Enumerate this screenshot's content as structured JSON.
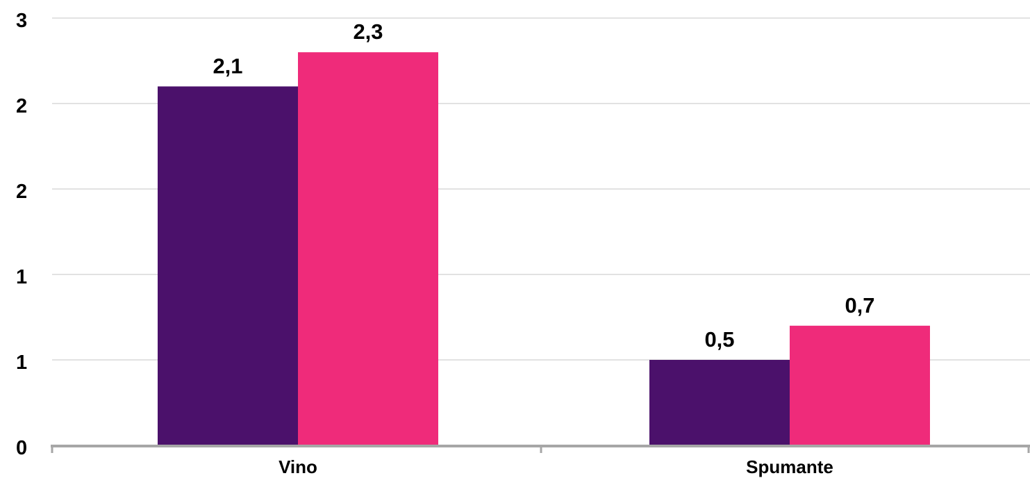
{
  "chart_data": {
    "type": "bar",
    "categories": [
      "Vino",
      "Spumante"
    ],
    "series": [
      {
        "values": [
          2.1,
          0.5
        ],
        "labels": [
          "2,1",
          "0,5"
        ],
        "color": "#4b116b"
      },
      {
        "values": [
          2.3,
          0.7
        ],
        "labels": [
          "2,3",
          "0,7"
        ],
        "color": "#ef2b7a"
      }
    ],
    "ylim": [
      0,
      2.5
    ],
    "yticks": [
      0,
      0.5,
      1,
      1.5,
      2,
      2.5
    ],
    "ytick_labels": [
      "0",
      "1",
      "1",
      "2",
      "2",
      "3"
    ],
    "grid": true,
    "colors": {
      "grid": "#d9d9d9",
      "axis": "#a6a6a6",
      "text": "#000000"
    }
  }
}
